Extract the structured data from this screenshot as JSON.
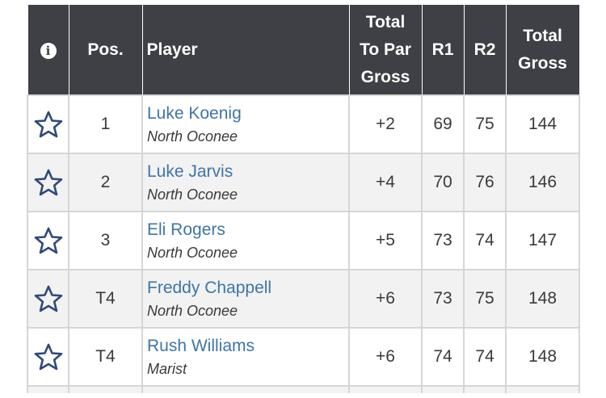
{
  "header": {
    "info_symbol": "i",
    "pos": "Pos.",
    "player": "Player",
    "total_to_par_line1": "Total",
    "total_to_par_line2": "To Par",
    "total_to_par_line3": "Gross",
    "r1": "R1",
    "r2": "R2",
    "total_gross_line1": "Total",
    "total_gross_line2": "Gross"
  },
  "rows": [
    {
      "pos": "1",
      "name": "Luke Koenig",
      "school": "North Oconee",
      "to_par": "+2",
      "r1": "69",
      "r2": "75",
      "total": "144"
    },
    {
      "pos": "2",
      "name": "Luke Jarvis",
      "school": "North Oconee",
      "to_par": "+4",
      "r1": "70",
      "r2": "76",
      "total": "146"
    },
    {
      "pos": "3",
      "name": "Eli Rogers",
      "school": "North Oconee",
      "to_par": "+5",
      "r1": "73",
      "r2": "74",
      "total": "147"
    },
    {
      "pos": "T4",
      "name": "Freddy Chappell",
      "school": "North Oconee",
      "to_par": "+6",
      "r1": "73",
      "r2": "75",
      "total": "148"
    },
    {
      "pos": "T4",
      "name": "Rush Williams",
      "school": "Marist",
      "to_par": "+6",
      "r1": "74",
      "r2": "74",
      "total": "148"
    }
  ],
  "colors": {
    "header_bg": "#3f4046",
    "link_blue": "#3f74a8",
    "star_navy": "#2f4a78",
    "row_alt": "#f2f2f2"
  },
  "icons": {
    "info": "info-circle-icon",
    "favorite": "star-outline-icon"
  }
}
